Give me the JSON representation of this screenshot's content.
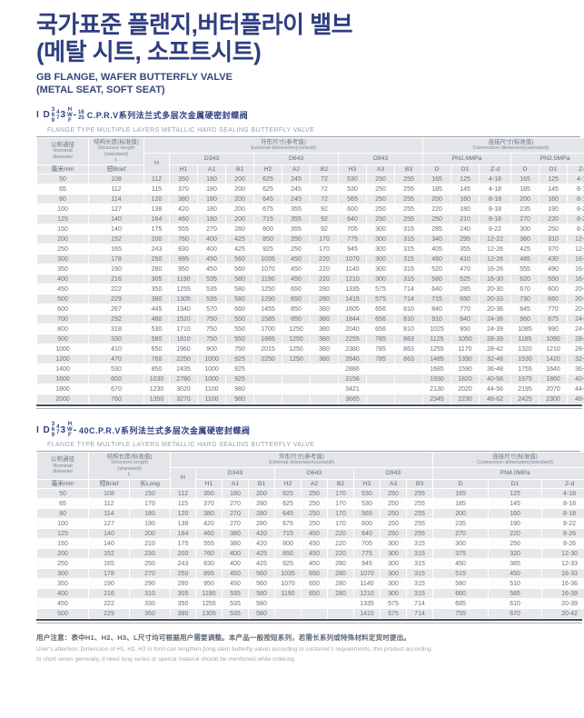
{
  "page": {
    "title_line1": "국가표준 플랜지,버터플라이 밸브",
    "title_line2": "(메탈 시트, 소프트시트)",
    "subtitle_line1": "GB FLANGE, WAFER BUTTERFLY VALVE",
    "subtitle_line2": "(METAL SEAT, SOFT SEAT)"
  },
  "headers": {
    "nominal_cn": "公称通径",
    "nominal_en1": "Nominal",
    "nominal_en2": "diameter",
    "mm": "毫米mm",
    "structure_cn": "结构长度(标准值)",
    "structure_en1": "Structure length",
    "structure_en2": "(standard)",
    "structure_l": "L",
    "brief": "短Brief",
    "long": "长Long",
    "external_cn": "外形尺寸(参考值)",
    "external_en": "External dimension(consult)",
    "connection_cn": "连接尺寸(标准值)",
    "connection_en": "Connection dimension(standard)",
    "h": "H",
    "d343": "D343",
    "d643": "D643",
    "d943": "D943",
    "pn16": "PN1.6MPa",
    "pn25": "PN2.5MPa",
    "pn40": "PN4.0MPa",
    "sub": [
      "H1",
      "A1",
      "B1",
      "H2",
      "A2",
      "B2",
      "H3",
      "A3",
      "B3"
    ],
    "conn_sub": [
      "D",
      "D1",
      "Z-d"
    ]
  },
  "section1": {
    "model": {
      "prefix": "I D",
      "stack1": [
        "3",
        "6",
        "9"
      ],
      "stack2": [
        "4",
        "7"
      ],
      "mid": "3",
      "stack3": [
        "H",
        "W",
        "F"
      ],
      "dash": "-",
      "stack4": [
        "16",
        "25"
      ],
      "suffix": "C.P.R.V系列法兰式多层次金属硬密封蝶阀"
    },
    "model_en": "FLANGE TYPE MULTIPLE LAYERS METALLIC HARD SEALING BUTTERFLY VALVE"
  },
  "section2": {
    "model": {
      "prefix": "I D",
      "stack1": [
        "3",
        "6",
        "9"
      ],
      "stack2": [
        "4",
        "7"
      ],
      "mid": "3",
      "stack3": [
        "H",
        "W",
        "F"
      ],
      "dash": "-",
      "suffix": "40C.P.R.V系列法兰式多层次金属硬密封蝶阀"
    },
    "model_en": "FLANGE TYPE MULTIPLE LAYERS METALLIC HARD SEALING BUTTERFLY VALVE"
  },
  "table1": {
    "rows": [
      [
        "50",
        "108",
        "112",
        "350",
        "180",
        "200",
        "625",
        "245",
        "72",
        "530",
        "250",
        "255",
        "165",
        "125",
        "4-18",
        "165",
        "125",
        "4-18"
      ],
      [
        "65",
        "112",
        "115",
        "370",
        "180",
        "200",
        "625",
        "245",
        "72",
        "530",
        "250",
        "255",
        "185",
        "145",
        "4-18",
        "185",
        "145",
        "8-18"
      ],
      [
        "80",
        "114",
        "120",
        "380",
        "180",
        "200",
        "645",
        "245",
        "72",
        "565",
        "250",
        "255",
        "200",
        "160",
        "8-18",
        "200",
        "160",
        "8-18"
      ],
      [
        "100",
        "127",
        "138",
        "420",
        "180",
        "200",
        "675",
        "355",
        "92",
        "600",
        "250",
        "255",
        "220",
        "180",
        "8-18",
        "235",
        "190",
        "8-22"
      ],
      [
        "125",
        "140",
        "164",
        "460",
        "180",
        "200",
        "715",
        "355",
        "92",
        "640",
        "250",
        "255",
        "250",
        "210",
        "8-18",
        "270",
        "220",
        "8-26"
      ],
      [
        "150",
        "140",
        "175",
        "555",
        "270",
        "280",
        "800",
        "355",
        "92",
        "705",
        "300",
        "315",
        "285",
        "240",
        "8-22",
        "300",
        "250",
        "8-26"
      ],
      [
        "200",
        "152",
        "200",
        "760",
        "400",
        "425",
        "850",
        "250",
        "170",
        "775",
        "300",
        "315",
        "340",
        "295",
        "12-22",
        "360",
        "310",
        "12-26"
      ],
      [
        "250",
        "165",
        "243",
        "830",
        "400",
        "425",
        "925",
        "250",
        "170",
        "945",
        "300",
        "315",
        "405",
        "355",
        "12-26",
        "425",
        "370",
        "12-30"
      ],
      [
        "300",
        "178",
        "250",
        "895",
        "450",
        "560",
        "1035",
        "450",
        "220",
        "1070",
        "300",
        "315",
        "460",
        "410",
        "12-26",
        "485",
        "430",
        "16-30"
      ],
      [
        "350",
        "190",
        "280",
        "950",
        "450",
        "560",
        "1070",
        "450",
        "220",
        "1140",
        "300",
        "315",
        "520",
        "470",
        "16-26",
        "555",
        "490",
        "16-33"
      ],
      [
        "400",
        "216",
        "305",
        "1190",
        "535",
        "580",
        "1190",
        "450",
        "220",
        "1210",
        "300",
        "315",
        "580",
        "525",
        "16-30",
        "620",
        "550",
        "16-36"
      ],
      [
        "450",
        "222",
        "350",
        "1255",
        "535",
        "580",
        "1250",
        "650",
        "280",
        "1335",
        "575",
        "714",
        "640",
        "285",
        "20-30",
        "670",
        "600",
        "20-38"
      ],
      [
        "500",
        "229",
        "380",
        "1305",
        "535",
        "580",
        "1290",
        "650",
        "280",
        "1415",
        "575",
        "714",
        "715",
        "650",
        "20-33",
        "730",
        "660",
        "20-36"
      ],
      [
        "600",
        "267",
        "445",
        "1340",
        "570",
        "660",
        "1455",
        "850",
        "380",
        "1605",
        "656",
        "810",
        "840",
        "770",
        "20-36",
        "845",
        "770",
        "20-39"
      ],
      [
        "700",
        "292",
        "480",
        "1520",
        "750",
        "550",
        "1585",
        "850",
        "380",
        "1844",
        "656",
        "810",
        "910",
        "840",
        "24-36",
        "960",
        "875",
        "24-42"
      ],
      [
        "800",
        "318",
        "530",
        "1710",
        "750",
        "550",
        "1700",
        "1250",
        "380",
        "2040",
        "656",
        "810",
        "1025",
        "950",
        "24-39",
        "1085",
        "990",
        "24-48"
      ],
      [
        "900",
        "330",
        "580",
        "1810",
        "750",
        "550",
        "1865",
        "1250",
        "380",
        "2255",
        "785",
        "863",
        "1125",
        "1050",
        "28-39",
        "1185",
        "1090",
        "28-48"
      ],
      [
        "1000",
        "410",
        "650",
        "1960",
        "900",
        "750",
        "2015",
        "1250",
        "380",
        "2380",
        "785",
        "863",
        "1255",
        "1170",
        "28-42",
        "1320",
        "1210",
        "28-56"
      ],
      [
        "1200",
        "470",
        "760",
        "2250",
        "1000",
        "925",
        "2250",
        "1250",
        "380",
        "2640",
        "785",
        "863",
        "1485",
        "1390",
        "32-48",
        "1530",
        "1420",
        "32-56"
      ],
      [
        "1400",
        "530",
        "850",
        "2435",
        "1000",
        "925",
        "",
        "",
        "",
        "2886",
        "",
        "",
        "1685",
        "1590",
        "36-48",
        "1755",
        "1640",
        "36-62"
      ],
      [
        "1600",
        "600",
        "1030",
        "2780",
        "1000",
        "925",
        "",
        "",
        "",
        "3156",
        "",
        "",
        "1930",
        "1820",
        "40-56",
        "1975",
        "1860",
        "40-62"
      ],
      [
        "1800",
        "670",
        "1230",
        "3020",
        "1100",
        "980",
        "",
        "",
        "",
        "3421",
        "",
        "",
        "2130",
        "2020",
        "44-56",
        "2195",
        "2070",
        "44-70"
      ],
      [
        "2000",
        "760",
        "1350",
        "3270",
        "1100",
        "980",
        "",
        "",
        "",
        "3685",
        "",
        "",
        "2345",
        "2230",
        "48-62",
        "2425",
        "2300",
        "48-70"
      ]
    ]
  },
  "table2": {
    "rows": [
      [
        "50",
        "108",
        "150",
        "112",
        "350",
        "180",
        "200",
        "625",
        "250",
        "170",
        "530",
        "250",
        "255",
        "165",
        "125",
        "4-18"
      ],
      [
        "65",
        "112",
        "170",
        "115",
        "370",
        "270",
        "280",
        "625",
        "250",
        "170",
        "530",
        "250",
        "255",
        "185",
        "145",
        "8-18"
      ],
      [
        "80",
        "114",
        "180",
        "120",
        "380",
        "270",
        "280",
        "645",
        "250",
        "170",
        "565",
        "250",
        "255",
        "200",
        "160",
        "8-18"
      ],
      [
        "100",
        "127",
        "190",
        "138",
        "420",
        "270",
        "280",
        "675",
        "250",
        "170",
        "600",
        "250",
        "255",
        "235",
        "190",
        "8-22"
      ],
      [
        "125",
        "140",
        "200",
        "164",
        "460",
        "380",
        "420",
        "715",
        "450",
        "220",
        "640",
        "250",
        "255",
        "270",
        "220",
        "8-26"
      ],
      [
        "150",
        "140",
        "210",
        "175",
        "555",
        "380",
        "420",
        "800",
        "450",
        "220",
        "705",
        "300",
        "315",
        "300",
        "250",
        "8-26"
      ],
      [
        "200",
        "152",
        "230",
        "200",
        "760",
        "400",
        "425",
        "850",
        "450",
        "220",
        "775",
        "300",
        "315",
        "375",
        "320",
        "12-30"
      ],
      [
        "250",
        "165",
        "250",
        "243",
        "830",
        "400",
        "425",
        "925",
        "450",
        "280",
        "945",
        "300",
        "315",
        "450",
        "385",
        "12-33"
      ],
      [
        "300",
        "178",
        "270",
        "250",
        "895",
        "450",
        "560",
        "1035",
        "650",
        "280",
        "1070",
        "300",
        "315",
        "515",
        "450",
        "16-33"
      ],
      [
        "350",
        "190",
        "290",
        "280",
        "950",
        "450",
        "560",
        "1070",
        "650",
        "280",
        "1140",
        "300",
        "315",
        "580",
        "510",
        "16-36"
      ],
      [
        "400",
        "216",
        "310",
        "305",
        "1190",
        "535",
        "580",
        "1190",
        "650",
        "280",
        "1210",
        "300",
        "315",
        "660",
        "585",
        "16-39"
      ],
      [
        "450",
        "222",
        "330",
        "350",
        "1255",
        "535",
        "580",
        "",
        "",
        "",
        "1335",
        "575",
        "714",
        "685",
        "610",
        "20-39"
      ],
      [
        "500",
        "229",
        "350",
        "380",
        "1305",
        "535",
        "580",
        "",
        "",
        "",
        "1415",
        "575",
        "714",
        "755",
        "670",
        "20-42"
      ]
    ]
  },
  "footer": {
    "cn": "用户注意：表中H1、H2、H3、L尺寸均可根据用户需要调整。本产品一般按短系列，若需长系列或特殊材料定货时提出。",
    "en1": "User's attention: Dimension of H1, H2, H3 in form can lengthen (long stem butterfly valve) according to customer's requirements, this product according",
    "en2": "to short series generally, if need long series or special material should be mentioned while ordering."
  }
}
